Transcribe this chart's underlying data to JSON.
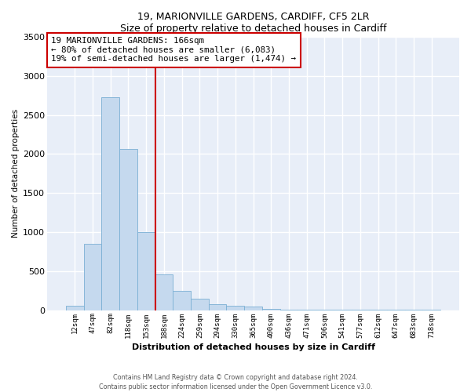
{
  "title1": "19, MARIONVILLE GARDENS, CARDIFF, CF5 2LR",
  "title2": "Size of property relative to detached houses in Cardiff",
  "xlabel": "Distribution of detached houses by size in Cardiff",
  "ylabel": "Number of detached properties",
  "bar_color": "#c5d9ee",
  "bar_edge_color": "#7aafd4",
  "vline_color": "#cc0000",
  "annotation_text": "19 MARIONVILLE GARDENS: 166sqm\n← 80% of detached houses are smaller (6,083)\n19% of semi-detached houses are larger (1,474) →",
  "categories": [
    "12sqm",
    "47sqm",
    "82sqm",
    "118sqm",
    "153sqm",
    "188sqm",
    "224sqm",
    "259sqm",
    "294sqm",
    "330sqm",
    "365sqm",
    "400sqm",
    "436sqm",
    "471sqm",
    "506sqm",
    "541sqm",
    "577sqm",
    "612sqm",
    "647sqm",
    "683sqm",
    "718sqm"
  ],
  "values": [
    60,
    850,
    2730,
    2060,
    1000,
    460,
    245,
    150,
    80,
    60,
    45,
    20,
    10,
    7,
    5,
    3,
    2,
    2,
    1,
    1,
    1
  ],
  "vline_pos": 4.5,
  "ylim": [
    0,
    3500
  ],
  "yticks": [
    0,
    500,
    1000,
    1500,
    2000,
    2500,
    3000,
    3500
  ],
  "bg_color": "#e8eef8",
  "grid_color": "#ffffff",
  "footnote_line1": "Contains HM Land Registry data © Crown copyright and database right 2024.",
  "footnote_line2": "Contains public sector information licensed under the Open Government Licence v3.0."
}
